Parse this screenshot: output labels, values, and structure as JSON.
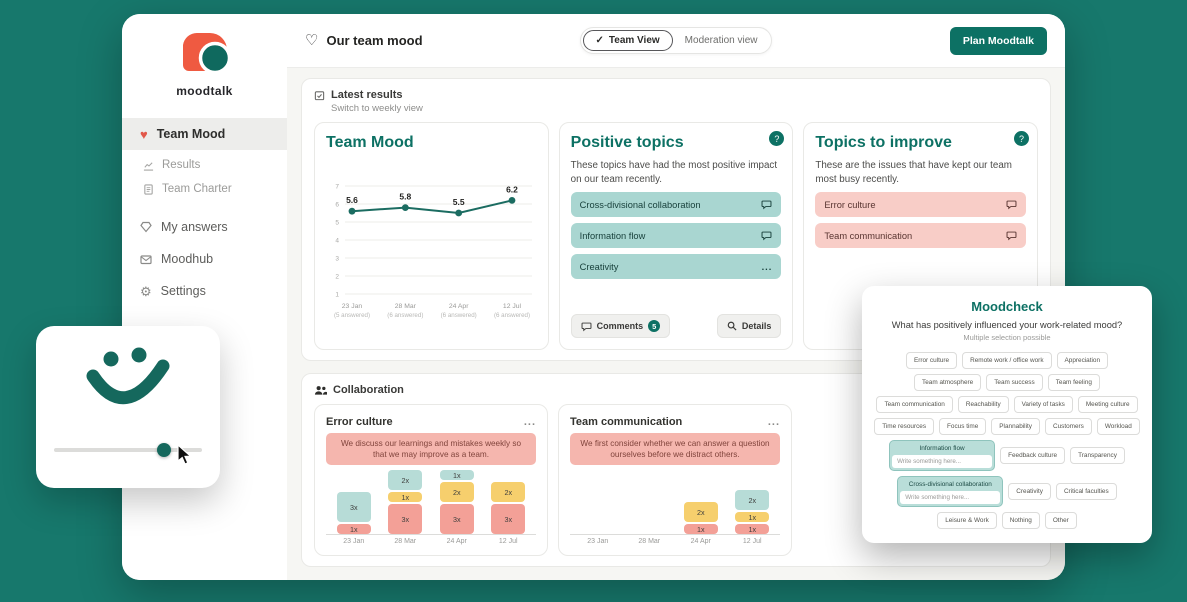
{
  "colors": {
    "background": "#17786c",
    "accent_teal": "#0d7164",
    "teal_pill": "#a9d6d1",
    "pink_pill": "#f8cdc7",
    "banner_pink": "#f5b6ae",
    "bar_teal": "#b7dcd7",
    "bar_yellow": "#f6cf6d",
    "bar_pink": "#f3a097",
    "heart_red": "#e2584a",
    "logo_orange": "#ef5a41"
  },
  "sidebar": {
    "logo_text": "moodtalk",
    "items": [
      {
        "label": "Team Mood"
      },
      {
        "label": "Results"
      },
      {
        "label": "Team Charter"
      },
      {
        "label": "My answers"
      },
      {
        "label": "Moodhub"
      },
      {
        "label": "Settings"
      }
    ]
  },
  "header": {
    "title": "Our team mood",
    "toggle": {
      "check": "✓",
      "team_view": "Team View",
      "moderation_view": "Moderation view"
    },
    "plan_button": "Plan Moodtalk"
  },
  "latest_results": {
    "title": "Latest results",
    "subtitle": "Switch to weekly view"
  },
  "team_mood_card": {
    "title": "Team Mood"
  },
  "positive_topics": {
    "badge": "?",
    "title": "Positive topics",
    "description": "These topics have had the most positive impact on our team recently.",
    "items": [
      {
        "label": "Cross-divisional collaboration",
        "icon": "comment"
      },
      {
        "label": "Information flow",
        "icon": "comment"
      },
      {
        "label": "Creativity",
        "icon": "more"
      }
    ],
    "comments_label": "Comments",
    "comments_count": "5",
    "details_label": "Details"
  },
  "topics_to_improve": {
    "badge": "?",
    "title": "Topics to improve",
    "description": "These are the issues that have kept our team most busy recently.",
    "items": [
      {
        "label": "Error culture",
        "icon": "comment"
      },
      {
        "label": "Team communication",
        "icon": "comment"
      }
    ]
  },
  "collaboration": {
    "title": "Collaboration",
    "cards": [
      {
        "title": "Error culture",
        "menu": "...",
        "banner": "We discuss our learnings and mistakes weekly so that we may improve as a team."
      },
      {
        "title": "Team communication",
        "menu": "...",
        "banner": "We first consider whether we can answer a question ourselves before we distract others."
      }
    ]
  },
  "moodcheck": {
    "title": "Moodcheck",
    "question": "What has positively influenced your work-related mood?",
    "hint": "Multiple selection possible",
    "pills": [
      {
        "label": "Error culture"
      },
      {
        "label": "Remote work / office work"
      },
      {
        "label": "Appreciation"
      },
      {
        "label": "Team atmosphere"
      },
      {
        "label": "Team success"
      },
      {
        "label": "Team feeling"
      },
      {
        "label": "Team communication"
      },
      {
        "label": "Reachability"
      },
      {
        "label": "Variety of tasks"
      },
      {
        "label": "Meeting culture"
      },
      {
        "label": "Time resources"
      },
      {
        "label": "Focus time"
      },
      {
        "label": "Plannability"
      },
      {
        "label": "Customers"
      },
      {
        "label": "Workload"
      },
      {
        "label": "Information flow",
        "selected": true,
        "input": "Write something here..."
      },
      {
        "label": "Feedback culture"
      },
      {
        "label": "Transparency"
      },
      {
        "label": "Cross-divisional collaboration",
        "selected": true,
        "input": "Write something here..."
      },
      {
        "label": "Creativity"
      },
      {
        "label": "Critical faculties"
      },
      {
        "label": "Leisure & Work"
      },
      {
        "label": "Nothing"
      },
      {
        "label": "Other"
      }
    ]
  },
  "chart_data": [
    {
      "type": "line",
      "title": "Team Mood",
      "x": [
        "23 Jan",
        "28 Mar",
        "24 Apr",
        "12 Jul"
      ],
      "x_sub": [
        "(5 answered)",
        "(6 answered)",
        "(6 answered)",
        "(6 answered)"
      ],
      "values": [
        5.6,
        5.8,
        5.5,
        6.2
      ],
      "ylim": [
        1,
        7
      ],
      "grid": true
    },
    {
      "type": "stacked-bar",
      "title": "Error culture",
      "categories": [
        "23 Jan",
        "28 Mar",
        "24 Apr",
        "12 Jul"
      ],
      "stacks": [
        [
          {
            "color": "teal",
            "count": 3
          },
          {
            "color": "pink",
            "count": 1
          }
        ],
        [
          {
            "color": "teal",
            "count": 2
          },
          {
            "color": "yellow",
            "count": 1
          },
          {
            "color": "pink",
            "count": 3
          }
        ],
        [
          {
            "color": "teal",
            "count": 1
          },
          {
            "color": "yellow",
            "count": 2
          },
          {
            "color": "pink",
            "count": 3
          }
        ],
        [
          {
            "color": "yellow",
            "count": 2
          },
          {
            "color": "pink",
            "count": 3
          }
        ]
      ]
    },
    {
      "type": "stacked-bar",
      "title": "Team communication",
      "categories": [
        "23 Jan",
        "28 Mar",
        "24 Apr",
        "12 Jul"
      ],
      "stacks": [
        [],
        [],
        [
          {
            "color": "yellow",
            "count": 2
          },
          {
            "color": "pink",
            "count": 1
          }
        ],
        [
          {
            "color": "teal",
            "count": 2
          },
          {
            "color": "yellow",
            "count": 1
          },
          {
            "color": "pink",
            "count": 1
          }
        ]
      ]
    }
  ]
}
